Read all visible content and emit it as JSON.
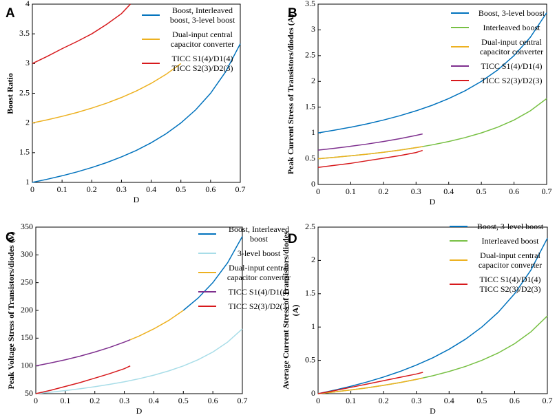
{
  "chart_data": [
    {
      "type": "line",
      "label": "A",
      "xlabel": "D",
      "ylabel": "Boost Ratio",
      "xlim": [
        0,
        0.7
      ],
      "xticks": [
        0,
        0.1,
        0.2,
        0.3,
        0.4,
        0.5,
        0.6,
        0.7
      ],
      "ylim": [
        1,
        4
      ],
      "yticks": [
        1,
        1.5,
        2,
        2.5,
        3,
        3.5,
        4
      ],
      "series": [
        {
          "name": "Boost, Interleaved boost, 3-level boost",
          "color": "#0072bd",
          "x": [
            0,
            0.05,
            0.1,
            0.15,
            0.2,
            0.25,
            0.3,
            0.35,
            0.4,
            0.45,
            0.5,
            0.55,
            0.6,
            0.65,
            0.7
          ],
          "values": [
            1,
            1.053,
            1.111,
            1.176,
            1.25,
            1.333,
            1.429,
            1.538,
            1.667,
            1.818,
            2,
            2.222,
            2.5,
            2.857,
            3.333
          ]
        },
        {
          "name": "Dual-input central capacitor converter",
          "color": "#edb120",
          "x": [
            0,
            0.05,
            0.1,
            0.15,
            0.2,
            0.25,
            0.3,
            0.35,
            0.4,
            0.45,
            0.5
          ],
          "values": [
            2,
            2.053,
            2.111,
            2.176,
            2.25,
            2.333,
            2.429,
            2.538,
            2.667,
            2.818,
            3
          ]
        },
        {
          "name": "TICC S1(4)/D1(4) TICC S2(3)/D2(3)",
          "color": "#d7191c",
          "x": [
            0,
            0.05,
            0.1,
            0.15,
            0.2,
            0.25,
            0.3,
            0.33
          ],
          "values": [
            3,
            3.12,
            3.25,
            3.37,
            3.5,
            3.66,
            3.84,
            4
          ]
        }
      ]
    },
    {
      "type": "line",
      "label": "B",
      "xlabel": "D",
      "ylabel": "Peak Current Stress of Transistors/diodes (A)",
      "xlim": [
        0,
        0.7
      ],
      "xticks": [
        0,
        0.1,
        0.2,
        0.3,
        0.4,
        0.5,
        0.6,
        0.7
      ],
      "ylim": [
        0,
        3.5
      ],
      "yticks": [
        0,
        0.5,
        1,
        1.5,
        2,
        2.5,
        3,
        3.5
      ],
      "series": [
        {
          "name": "Boost, 3-level boost",
          "color": "#0072bd",
          "x": [
            0,
            0.05,
            0.1,
            0.15,
            0.2,
            0.25,
            0.3,
            0.35,
            0.4,
            0.45,
            0.5,
            0.55,
            0.6,
            0.65,
            0.7
          ],
          "values": [
            1,
            1.053,
            1.111,
            1.176,
            1.25,
            1.333,
            1.429,
            1.538,
            1.667,
            1.818,
            2,
            2.222,
            2.5,
            2.857,
            3.333
          ]
        },
        {
          "name": "Interleaved boost",
          "color": "#77c043",
          "x": [
            0,
            0.05,
            0.1,
            0.15,
            0.2,
            0.25,
            0.3,
            0.35,
            0.4,
            0.45,
            0.5,
            0.55,
            0.6,
            0.65,
            0.7
          ],
          "values": [
            0.5,
            0.526,
            0.556,
            0.588,
            0.625,
            0.667,
            0.714,
            0.769,
            0.833,
            0.909,
            1,
            1.111,
            1.25,
            1.429,
            1.667
          ]
        },
        {
          "name": "Dual-input central capacitor converter",
          "color": "#edb120",
          "x": [
            0,
            0.05,
            0.1,
            0.15,
            0.2,
            0.25,
            0.3,
            0.32
          ],
          "values": [
            0.5,
            0.526,
            0.556,
            0.588,
            0.625,
            0.667,
            0.714,
            0.735
          ]
        },
        {
          "name": "TICC S1(4)/D1(4)",
          "color": "#7e2f8e",
          "x": [
            0,
            0.05,
            0.1,
            0.15,
            0.2,
            0.25,
            0.3,
            0.32
          ],
          "values": [
            0.667,
            0.702,
            0.741,
            0.784,
            0.833,
            0.889,
            0.952,
            0.98
          ]
        },
        {
          "name": "TICC S2(3)/D2(3)",
          "color": "#d7191c",
          "x": [
            0,
            0.05,
            0.1,
            0.15,
            0.2,
            0.25,
            0.3,
            0.32
          ],
          "values": [
            0.33,
            0.37,
            0.41,
            0.46,
            0.51,
            0.56,
            0.62,
            0.66
          ]
        }
      ]
    },
    {
      "type": "line",
      "label": "C",
      "xlabel": "D",
      "ylabel": "Peak Voltage Stress of Transistors/diodes (V)",
      "xlim": [
        0,
        0.7
      ],
      "xticks": [
        0,
        0.1,
        0.2,
        0.3,
        0.4,
        0.5,
        0.6,
        0.7
      ],
      "ylim": [
        50,
        350
      ],
      "yticks": [
        50,
        100,
        150,
        200,
        250,
        300,
        350
      ],
      "series": [
        {
          "name": "Boost, Interleaved boost",
          "color": "#0072bd",
          "x": [
            0.5,
            0.55,
            0.6,
            0.65,
            0.7
          ],
          "values": [
            200,
            222.2,
            250,
            285.7,
            333.3
          ]
        },
        {
          "name": "3-level boost",
          "color": "#a8dde8",
          "x": [
            0,
            0.05,
            0.1,
            0.15,
            0.2,
            0.25,
            0.3,
            0.35,
            0.4,
            0.45,
            0.5,
            0.55,
            0.6,
            0.65,
            0.7
          ],
          "values": [
            50,
            52.6,
            55.6,
            58.8,
            62.5,
            66.7,
            71.4,
            76.9,
            83.3,
            90.9,
            100,
            111.1,
            125,
            142.9,
            166.7
          ]
        },
        {
          "name": "Dual-input central capacitor converter",
          "color": "#edb120",
          "x": [
            0.32,
            0.35,
            0.4,
            0.45,
            0.5
          ],
          "values": [
            147.1,
            153.8,
            166.7,
            181.8,
            200
          ]
        },
        {
          "name": "TICC S1(4)/D1(4)",
          "color": "#7e2f8e",
          "x": [
            0,
            0.05,
            0.1,
            0.15,
            0.2,
            0.25,
            0.3,
            0.32
          ],
          "values": [
            100,
            105.3,
            111.1,
            117.6,
            125,
            133.3,
            142.9,
            147.1
          ]
        },
        {
          "name": "TICC S2(3)/D2(3)",
          "color": "#d7191c",
          "x": [
            0,
            0.05,
            0.1,
            0.15,
            0.2,
            0.25,
            0.3,
            0.32
          ],
          "values": [
            50,
            56,
            63,
            70,
            78,
            86,
            95,
            100
          ]
        }
      ]
    },
    {
      "type": "line",
      "label": "D",
      "xlabel": "D",
      "ylabel": "Average Current Stress of Transistors/diodes (A)",
      "xlim": [
        0,
        0.7
      ],
      "xticks": [
        0,
        0.1,
        0.2,
        0.3,
        0.4,
        0.5,
        0.6,
        0.7
      ],
      "ylim": [
        0,
        2.5
      ],
      "yticks": [
        0,
        0.5,
        1,
        1.5,
        2,
        2.5
      ],
      "series": [
        {
          "name": "Boost, 3-level boost",
          "color": "#0072bd",
          "x": [
            0,
            0.05,
            0.1,
            0.15,
            0.2,
            0.25,
            0.3,
            0.35,
            0.4,
            0.45,
            0.5,
            0.55,
            0.6,
            0.65,
            0.7
          ],
          "values": [
            0,
            0.053,
            0.111,
            0.176,
            0.25,
            0.333,
            0.429,
            0.538,
            0.667,
            0.818,
            1,
            1.222,
            1.5,
            1.857,
            2.333
          ]
        },
        {
          "name": "Interleaved boost",
          "color": "#77c043",
          "x": [
            0,
            0.05,
            0.1,
            0.15,
            0.2,
            0.25,
            0.3,
            0.35,
            0.4,
            0.45,
            0.5,
            0.55,
            0.6,
            0.65,
            0.7
          ],
          "values": [
            0,
            0.026,
            0.056,
            0.088,
            0.125,
            0.167,
            0.214,
            0.269,
            0.333,
            0.409,
            0.5,
            0.611,
            0.75,
            0.929,
            1.167
          ]
        },
        {
          "name": "Dual-input central capacitor converter",
          "color": "#edb120",
          "x": [
            0,
            0.05,
            0.1,
            0.15,
            0.2,
            0.25,
            0.3,
            0.32
          ],
          "values": [
            0,
            0.026,
            0.056,
            0.088,
            0.125,
            0.167,
            0.214,
            0.235
          ]
        },
        {
          "name": "TICC S1(4)/D1(4) TICC S2(3)/D2(3)",
          "color": "#d7191c",
          "x": [
            0,
            0.05,
            0.1,
            0.15,
            0.2,
            0.25,
            0.3,
            0.32
          ],
          "values": [
            0,
            0.045,
            0.095,
            0.145,
            0.195,
            0.245,
            0.295,
            0.32
          ]
        }
      ]
    }
  ]
}
